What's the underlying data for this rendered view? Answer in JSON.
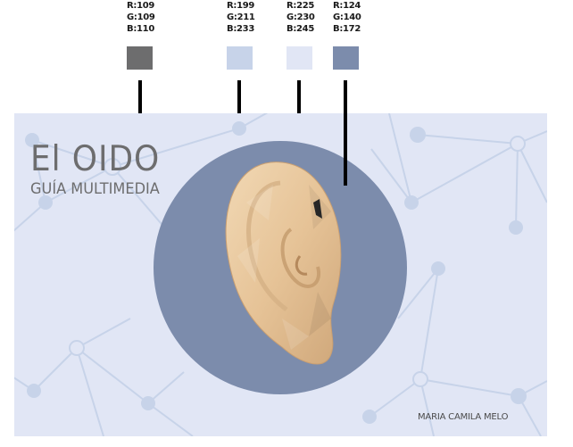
{
  "swatches": [
    {
      "r": "R:109",
      "g": "G:109",
      "b": "B:110",
      "color": "#6d6d6e"
    },
    {
      "r": "R:199",
      "g": "G:211",
      "b": "B:233",
      "color": "#c7d3e9"
    },
    {
      "r": "R:225",
      "g": "G:230",
      "b": "B:245",
      "color": "#e1e6f5"
    },
    {
      "r": "R:124",
      "g": "G:140",
      "b": "B:172",
      "color": "#7c8cac"
    }
  ],
  "cover": {
    "title": "El OIDO",
    "subtitle": "GUÍA MULTIMEDIA",
    "author": "MARIA CAMILA MELO"
  },
  "colors": {
    "background": "#e1e6f5",
    "network": "#c7d3e9",
    "circle": "#7c8cac",
    "title_text": "#6d6d6e",
    "skin": "#e9c9a0"
  }
}
